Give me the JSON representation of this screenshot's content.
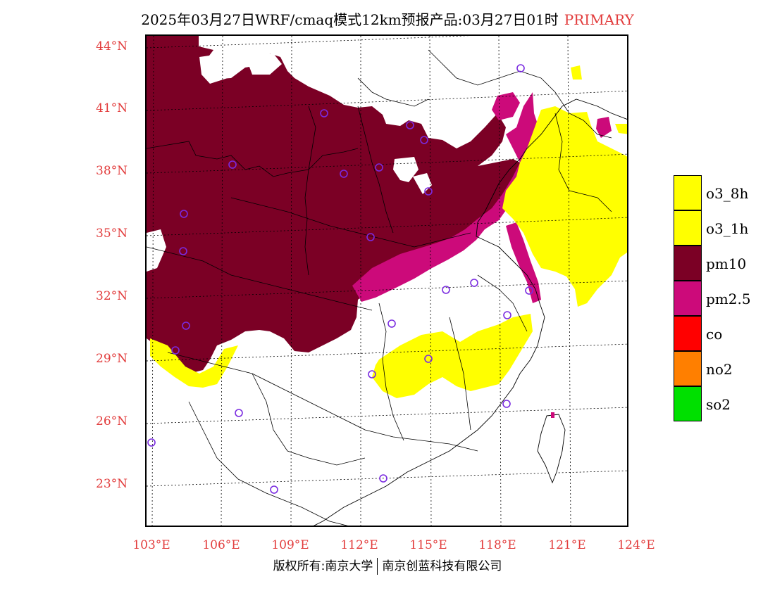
{
  "title": {
    "main": "2025年03月27日WRF/cmaq模式12km预报产品:03月27日01时",
    "tag": "PRIMARY",
    "tag_color": "#e23c3c"
  },
  "axes": {
    "lat_labels": [
      "44°N",
      "41°N",
      "38°N",
      "35°N",
      "32°N",
      "29°N",
      "26°N",
      "23°N"
    ],
    "lon_labels": [
      "103°E",
      "106°E",
      "109°E",
      "112°E",
      "115°E",
      "118°E",
      "121°E",
      "124°E"
    ]
  },
  "legend": [
    {
      "label": "o3_8h",
      "color": "#ffff00"
    },
    {
      "label": "o3_1h",
      "color": "#ffff00"
    },
    {
      "label": "pm10",
      "color": "#7b0025"
    },
    {
      "label": "pm2.5",
      "color": "#cc0a7a"
    },
    {
      "label": "co",
      "color": "#ff0000"
    },
    {
      "label": "no2",
      "color": "#ff7f00"
    },
    {
      "label": "so2",
      "color": "#00e000"
    }
  ],
  "copyright": {
    "left": "版权所有:南京大学",
    "right": "南京创蓝科技有限公司"
  }
}
